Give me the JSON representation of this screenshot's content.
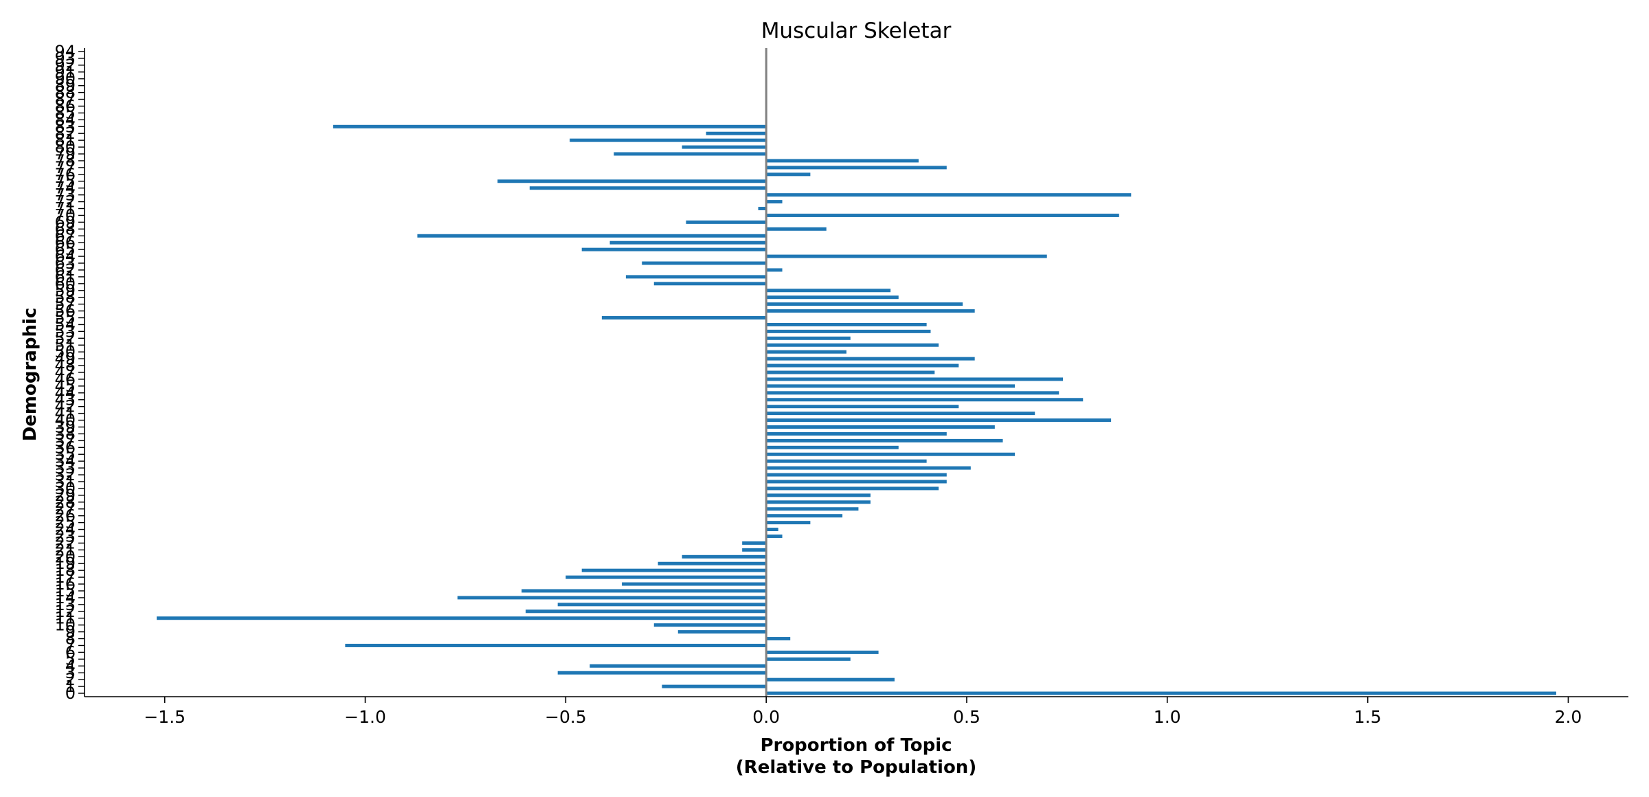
{
  "chart_data": {
    "type": "bar",
    "orientation": "horizontal",
    "title": "Muscular Skeletar",
    "xlabel_line1": "Proportion of Topic",
    "xlabel_line2": "(Relative to Population)",
    "ylabel": "Demographic",
    "xlim": [
      -1.7,
      2.15
    ],
    "ylim": [
      -0.5,
      94.5
    ],
    "xticks": [
      -1.5,
      -1.0,
      -0.5,
      0.0,
      0.5,
      1.0,
      1.5,
      2.0
    ],
    "xtick_labels": [
      "−1.5",
      "−1.0",
      "−0.5",
      "0.0",
      "0.5",
      "1.0",
      "1.5",
      "2.0"
    ],
    "grid": false,
    "legend": "none",
    "bar_color": "#1f77b4",
    "zero_line_color": "#808080",
    "categories": [
      "0",
      "1",
      "2",
      "3",
      "4",
      "5",
      "6",
      "7",
      "8",
      "9",
      "10",
      "11",
      "12",
      "13",
      "14",
      "15",
      "16",
      "17",
      "18",
      "19",
      "20",
      "21",
      "22",
      "23",
      "24",
      "25",
      "26",
      "27",
      "28",
      "29",
      "30",
      "31",
      "32",
      "33",
      "34",
      "35",
      "36",
      "37",
      "38",
      "39",
      "40",
      "41",
      "42",
      "43",
      "44",
      "45",
      "46",
      "47",
      "48",
      "49",
      "50",
      "51",
      "52",
      "53",
      "54",
      "55",
      "56",
      "57",
      "58",
      "59",
      "60",
      "61",
      "62",
      "63",
      "64",
      "65",
      "66",
      "67",
      "68",
      "69",
      "70",
      "71",
      "72",
      "73",
      "74",
      "75",
      "76",
      "77",
      "78",
      "79",
      "80",
      "81",
      "82",
      "83",
      "84",
      "85",
      "86",
      "87",
      "88",
      "89",
      "90",
      "91",
      "92",
      "93",
      "94"
    ],
    "values": [
      1.97,
      -0.26,
      0.32,
      -0.52,
      -0.44,
      0.21,
      0.28,
      -1.05,
      0.06,
      -0.22,
      -0.28,
      -1.52,
      -0.6,
      -0.52,
      -0.77,
      -0.61,
      -0.36,
      -0.5,
      -0.46,
      -0.27,
      -0.21,
      -0.06,
      -0.06,
      0.04,
      0.03,
      0.11,
      0.19,
      0.23,
      0.26,
      0.26,
      0.43,
      0.45,
      0.45,
      0.51,
      0.4,
      0.62,
      0.33,
      0.59,
      0.45,
      0.57,
      0.86,
      0.67,
      0.48,
      0.79,
      0.73,
      0.62,
      0.74,
      0.42,
      0.48,
      0.52,
      0.2,
      0.43,
      0.21,
      0.41,
      0.4,
      -0.41,
      0.52,
      0.49,
      0.33,
      0.31,
      -0.28,
      -0.35,
      0.04,
      -0.31,
      0.7,
      -0.46,
      -0.39,
      -0.87,
      0.15,
      -0.2,
      0.88,
      -0.02,
      0.04,
      0.91,
      -0.59,
      -0.67,
      0.11,
      0.45,
      0.38,
      -0.38,
      -0.21,
      -0.49,
      -0.15,
      -1.08,
      0,
      0,
      0,
      0,
      0,
      0,
      0,
      0,
      0,
      0,
      0
    ]
  }
}
